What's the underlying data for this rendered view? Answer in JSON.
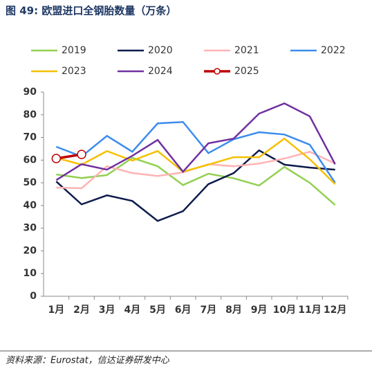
{
  "chart_data": {
    "type": "line",
    "title": "图 49: 欧盟进口全钢胎数量（万条）",
    "categories": [
      "1月",
      "2月",
      "3月",
      "4月",
      "5月",
      "6月",
      "7月",
      "8月",
      "9月",
      "10月",
      "11月",
      "12月"
    ],
    "ylim": [
      0,
      90
    ],
    "yticks": [
      0,
      10,
      20,
      30,
      40,
      50,
      60,
      70,
      80,
      90
    ],
    "series": [
      {
        "name": "2019",
        "color": "#92d050",
        "values": [
          53.7,
          52.1,
          53.4,
          61,
          57.3,
          49,
          54,
          52,
          48.8,
          57,
          50,
          40.2
        ]
      },
      {
        "name": "2020",
        "color": "#0d1b4b",
        "values": [
          50.6,
          40.5,
          44.5,
          42,
          33.2,
          37.5,
          49.4,
          54.3,
          64.3,
          58,
          56.7,
          55.8
        ]
      },
      {
        "name": "2021",
        "color": "#ffb3b3",
        "values": [
          47.9,
          47.6,
          57.3,
          54.3,
          53,
          54.6,
          58.2,
          57.3,
          58.5,
          60.7,
          63.7,
          58.5
        ]
      },
      {
        "name": "2022",
        "color": "#3c8ced",
        "values": [
          65.9,
          61.6,
          70.7,
          63.7,
          76.2,
          76.8,
          63.1,
          69.2,
          72.3,
          71.3,
          66.8,
          50
        ]
      },
      {
        "name": "2023",
        "color": "#f5c000",
        "values": [
          61,
          58,
          64,
          59.8,
          64,
          54.9,
          58,
          61.3,
          61.3,
          69.5,
          60.4,
          49.4
        ]
      },
      {
        "name": "2024",
        "color": "#7030a0",
        "values": [
          51.2,
          58.2,
          55.8,
          61.9,
          68.9,
          54.9,
          67.4,
          69.5,
          80.5,
          85,
          79.3,
          58.2
        ]
      },
      {
        "name": "2025",
        "color": "#c00000",
        "markers": true,
        "values": [
          60.7,
          62.5,
          null,
          null,
          null,
          null,
          null,
          null,
          null,
          null,
          null,
          null
        ]
      }
    ]
  },
  "source": "资料来源：Eurostat，信达证券研发中心"
}
